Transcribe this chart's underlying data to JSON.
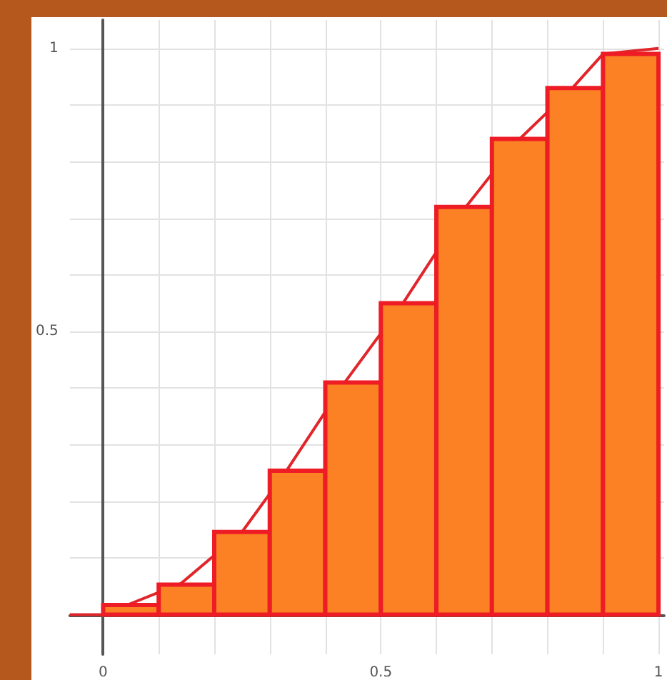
{
  "chart_data": {
    "type": "histogram",
    "bins": [
      0,
      0.1,
      0.2,
      0.3,
      0.4,
      0.5,
      0.6,
      0.7,
      0.8,
      0.9,
      1
    ],
    "series": [
      {
        "color": "#fb8124",
        "values": [
          0.017,
          0.053,
          0.146,
          0.254,
          0.41,
          0.55,
          0.72,
          0.84,
          0.93,
          0.99
        ]
      },
      {
        "type": "line",
        "color": "#e0262a",
        "x": [
          -0.06,
          0,
          0.14,
          0.25,
          0.33,
          0.435,
          0.54,
          0.653,
          0.75,
          0.845,
          0.9,
          1
        ],
        "values": [
          0,
          0,
          0.055,
          0.146,
          0.254,
          0.41,
          0.55,
          0.72,
          0.84,
          0.93,
          0.99,
          1
        ]
      }
    ],
    "xlim": [
      -0.06,
      1.01
    ],
    "ylim": [
      -0.07,
      1.05
    ],
    "xticks": [
      0,
      {
        "value": 0.1,
        "label": null
      },
      {
        "value": 0.2,
        "label": null
      },
      {
        "value": 0.3,
        "label": null
      },
      {
        "value": 0.4,
        "label": null
      },
      0.5,
      {
        "value": 0.6,
        "label": null
      },
      {
        "value": 0.7,
        "label": null
      },
      {
        "value": 0.8,
        "label": null
      },
      {
        "value": 0.9,
        "label": null
      },
      1
    ],
    "yticks": [
      {
        "value": 0,
        "label": null
      },
      {
        "value": 0.1,
        "label": null
      },
      {
        "value": 0.2,
        "label": null
      },
      {
        "value": 0.3,
        "label": null
      },
      {
        "value": 0.4,
        "label": null
      },
      0.5,
      {
        "value": 0.6,
        "label": null
      },
      {
        "value": 0.7,
        "label": null
      },
      {
        "value": 0.8,
        "label": null
      },
      {
        "value": 0.9,
        "label": null
      },
      1
    ],
    "grid": true,
    "marker": "none",
    "line_style": "solid"
  }
}
